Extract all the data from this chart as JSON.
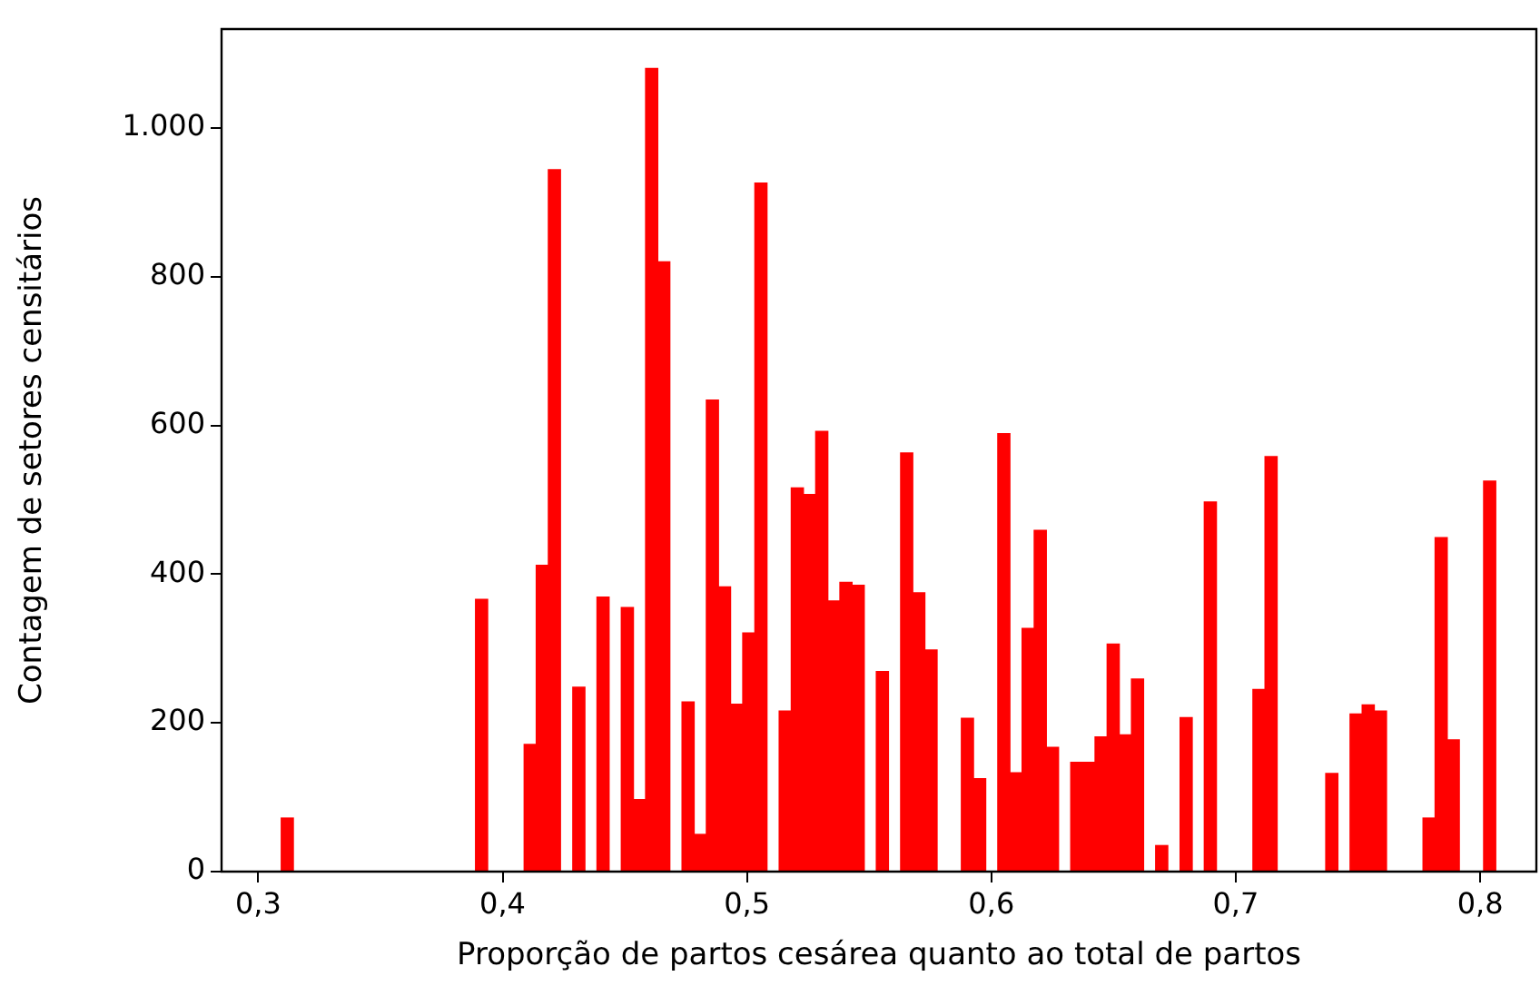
{
  "chart_data": {
    "type": "histogram",
    "xlabel": "Proporção de partos cesárea quanto ao total de partos",
    "ylabel": "Contagem de setores censitários",
    "color": "#ff0000",
    "bins": [
      0.3094,
      0.3144,
      0.3193,
      0.3243,
      0.3293,
      0.3343,
      0.3392,
      0.3442,
      0.3492,
      0.3541,
      0.3591,
      0.3641,
      0.369,
      0.374,
      0.379,
      0.384,
      0.3889,
      0.3939,
      0.3989,
      0.4038,
      0.4088,
      0.4138,
      0.4187,
      0.4237,
      0.4287,
      0.4337,
      0.4386,
      0.4436,
      0.4486,
      0.4535,
      0.4585,
      0.4635,
      0.4684,
      0.4734,
      0.4784,
      0.4834,
      0.4883,
      0.4933,
      0.4983,
      0.5032,
      0.5082,
      0.5132,
      0.5181,
      0.5231,
      0.5281,
      0.5331,
      0.538,
      0.543,
      0.548,
      0.5529,
      0.5579,
      0.5629,
      0.5678,
      0.5728,
      0.5778,
      0.5828,
      0.5877,
      0.5927,
      0.5977,
      0.6026,
      0.6076,
      0.6126,
      0.6175,
      0.6225,
      0.6275,
      0.6325,
      0.6374,
      0.6424,
      0.6474,
      0.6523,
      0.6573,
      0.6623,
      0.6672,
      0.6722,
      0.6772,
      0.6822,
      0.6871,
      0.6921,
      0.6971,
      0.702,
      0.707,
      0.712,
      0.7169,
      0.7219,
      0.7269,
      0.7319,
      0.7368,
      0.7418,
      0.7468,
      0.7517,
      0.7567,
      0.7617,
      0.7666,
      0.7716,
      0.7766,
      0.7816,
      0.7865,
      0.7915,
      0.7965,
      0.8014,
      0.8064
    ],
    "values": [
      72,
      0,
      0,
      0,
      0,
      0,
      0,
      0,
      0,
      0,
      0,
      0,
      0,
      0,
      0,
      0,
      366,
      0,
      0,
      0,
      171,
      412,
      944,
      0,
      248,
      0,
      369,
      0,
      355,
      97,
      1080,
      820,
      0,
      228,
      50,
      634,
      383,
      225,
      321,
      926,
      0,
      216,
      516,
      507,
      592,
      364,
      389,
      385,
      0,
      269,
      0,
      563,
      375,
      298,
      0,
      0,
      206,
      125,
      0,
      589,
      133,
      327,
      459,
      167,
      0,
      147,
      147,
      181,
      306,
      184,
      259,
      0,
      35,
      0,
      207,
      0,
      497,
      0,
      0,
      0,
      245,
      558,
      0,
      0,
      0,
      0,
      132,
      0,
      212,
      224,
      216,
      0,
      0,
      0,
      72,
      449,
      177,
      0,
      0,
      525
    ],
    "xlim": [
      0.285,
      0.823
    ],
    "ylim": [
      0,
      1133
    ],
    "xticks": [
      {
        "value": 0.3,
        "label": "0,3"
      },
      {
        "value": 0.4,
        "label": "0,4"
      },
      {
        "value": 0.5,
        "label": "0,5"
      },
      {
        "value": 0.6,
        "label": "0,6"
      },
      {
        "value": 0.7,
        "label": "0,7"
      },
      {
        "value": 0.8,
        "label": "0,8"
      }
    ],
    "yticks": [
      0,
      200,
      400,
      600,
      800,
      {
        "value": 1000,
        "label": "1.000"
      }
    ],
    "grid": false
  }
}
